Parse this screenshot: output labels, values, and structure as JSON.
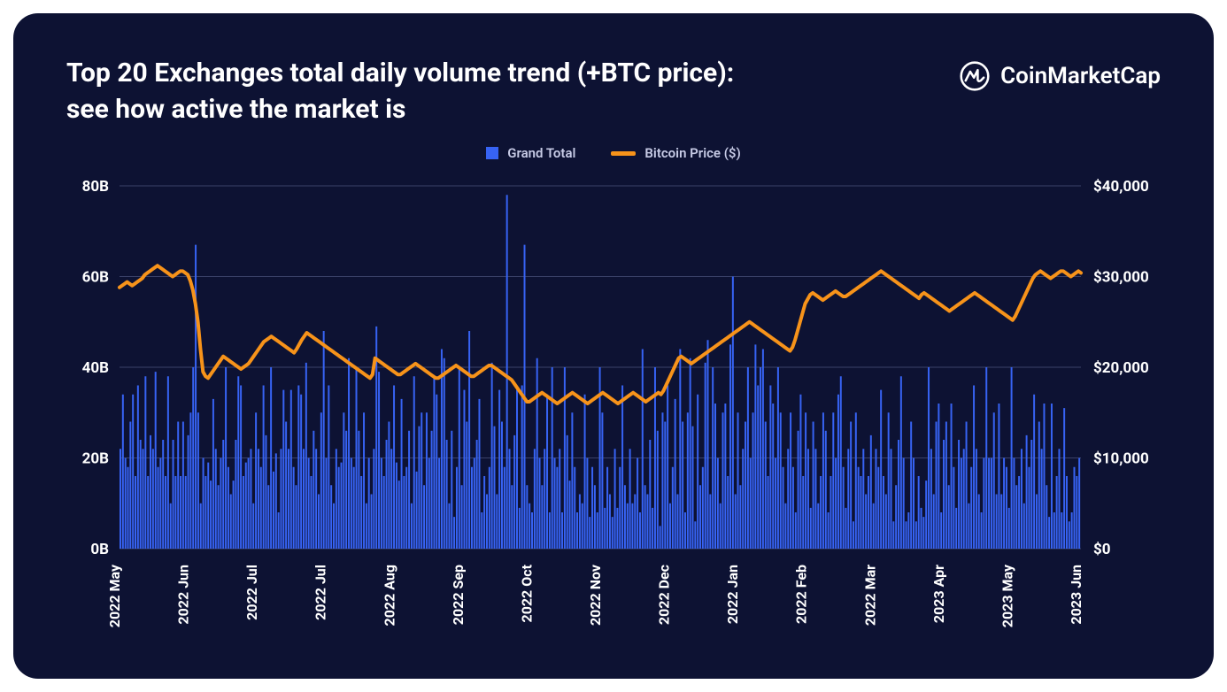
{
  "title": "Top 20 Exchanges total daily volume trend (+BTC price): see how active the market is",
  "brand": "CoinMarketCap",
  "legend": {
    "bar_label": "Grand Total",
    "line_label": "Bitcoin Price ($)"
  },
  "colors": {
    "background": "#0d1233",
    "bar": "#3763f4",
    "line": "#f7931a",
    "grid": "#3a4168",
    "text": "#ffffff"
  },
  "chart": {
    "type": "bar+line",
    "left_axis": {
      "min": 0,
      "max": 80,
      "ticks": [
        0,
        20,
        40,
        60,
        80
      ],
      "tick_labels": [
        "0B",
        "20B",
        "40B",
        "60B",
        "80B"
      ]
    },
    "right_axis": {
      "min": 0,
      "max": 40000,
      "ticks": [
        0,
        10000,
        20000,
        30000,
        40000
      ],
      "tick_labels": [
        "$0",
        "$10,000",
        "$20,000",
        "$30,000",
        "$40,000"
      ]
    },
    "x_labels": [
      "2022 May",
      "2022 Jun",
      "2022 Jul",
      "2022 Jul",
      "2022 Aug",
      "2022 Sep",
      "2022 Oct",
      "2022 Nov",
      "2022 Dec",
      "2022 Jan",
      "2022 Feb",
      "2022 Mar",
      "2023 Apr",
      "2023 May",
      "2023 Jun"
    ],
    "bars": [
      22,
      34,
      20,
      18,
      28,
      34,
      16,
      36,
      24,
      22,
      38,
      16,
      25,
      22,
      39,
      18,
      20,
      24,
      16,
      38,
      10,
      24,
      16,
      28,
      16,
      28,
      16,
      25,
      30,
      40,
      67,
      30,
      10,
      20,
      16,
      19,
      15,
      33,
      22,
      14,
      20,
      24,
      40,
      18,
      12,
      15,
      24,
      38,
      36,
      16,
      19,
      20,
      22,
      10,
      30,
      22,
      18,
      36,
      25,
      14,
      40,
      17,
      21,
      8,
      22,
      35,
      28,
      22,
      35,
      18,
      14,
      36,
      34,
      22,
      41,
      20,
      16,
      26,
      22,
      12,
      30,
      48,
      20,
      36,
      14,
      10,
      22,
      18,
      19,
      30,
      26,
      42,
      20,
      18,
      40,
      26,
      16,
      30,
      10,
      20,
      12,
      22,
      49,
      39,
      20,
      16,
      24,
      28,
      22,
      36,
      19,
      15,
      33,
      16,
      18,
      26,
      10,
      38,
      17,
      27,
      30,
      14,
      30,
      20,
      26,
      38,
      34,
      20,
      44,
      42,
      24,
      10,
      26,
      7,
      18,
      40,
      14,
      35,
      28,
      48,
      18,
      20,
      24,
      33,
      8,
      16,
      12,
      18,
      41,
      27,
      12,
      35,
      28,
      18,
      78,
      22,
      14,
      25,
      35,
      9,
      36,
      67,
      14,
      10,
      8,
      22,
      42,
      20,
      14,
      22,
      34,
      8,
      40,
      20,
      18,
      22,
      8,
      40,
      25,
      15,
      30,
      18,
      8,
      12,
      10,
      34,
      20,
      7,
      18,
      14,
      8,
      40,
      30,
      9,
      18,
      12,
      7,
      22,
      9,
      18,
      36,
      14,
      10,
      22,
      10,
      12,
      20,
      8,
      44,
      14,
      12,
      24,
      9,
      40,
      26,
      5,
      30,
      28,
      36,
      10,
      18,
      33,
      12,
      44,
      28,
      8,
      30,
      42,
      27,
      6,
      34,
      14,
      18,
      41,
      46,
      12,
      40,
      32,
      20,
      10,
      30,
      32,
      16,
      45,
      60,
      12,
      30,
      14,
      22,
      28,
      40,
      20,
      30,
      45,
      36,
      40,
      44,
      28,
      16,
      36,
      32,
      20,
      40,
      30,
      18,
      10,
      22,
      30,
      18,
      8,
      26,
      34,
      16,
      30,
      22,
      9,
      28,
      22,
      10,
      16,
      30,
      26,
      8,
      16,
      30,
      20,
      34,
      38,
      18,
      9,
      22,
      28,
      6,
      30,
      18,
      16,
      22,
      12,
      16,
      25,
      10,
      22,
      18,
      35,
      16,
      12,
      30,
      22,
      6,
      14,
      24,
      38,
      20,
      6,
      8,
      28,
      20,
      6,
      16,
      9,
      7,
      15,
      40,
      22,
      12,
      28,
      32,
      8,
      24,
      28,
      14,
      32,
      18,
      9,
      24,
      20,
      22,
      28,
      10,
      18,
      36,
      22,
      12,
      8,
      20,
      40,
      20,
      20,
      30,
      12,
      32,
      12,
      20,
      18,
      9,
      40,
      20,
      14,
      16,
      22,
      10,
      25,
      18,
      24,
      34,
      12,
      28,
      22,
      32,
      14,
      7,
      32,
      8,
      16,
      22,
      8,
      31,
      16,
      6,
      8,
      18,
      16,
      20
    ],
    "line": [
      28800,
      29000,
      29200,
      29400,
      29200,
      29000,
      29200,
      29400,
      29600,
      29800,
      30200,
      30400,
      30600,
      30800,
      31000,
      31200,
      31000,
      30800,
      30600,
      30400,
      30200,
      30000,
      30200,
      30400,
      30600,
      30600,
      30400,
      30200,
      29500,
      28500,
      27000,
      25000,
      22000,
      19500,
      19000,
      18800,
      19200,
      19600,
      20000,
      20400,
      20800,
      21200,
      21000,
      20800,
      20600,
      20400,
      20200,
      20000,
      19800,
      20000,
      20200,
      20400,
      20800,
      21200,
      21600,
      22000,
      22400,
      22800,
      23000,
      23200,
      23400,
      23200,
      23000,
      22800,
      22600,
      22400,
      22200,
      22000,
      21800,
      21600,
      22000,
      22500,
      23000,
      23400,
      23800,
      23600,
      23400,
      23200,
      23000,
      22800,
      22600,
      22400,
      22200,
      22000,
      21800,
      21600,
      21400,
      21200,
      21000,
      20800,
      20600,
      20400,
      20200,
      20000,
      19800,
      19600,
      19400,
      19200,
      19000,
      18800,
      19200,
      21000,
      20800,
      20600,
      20400,
      20200,
      20000,
      19800,
      19600,
      19400,
      19200,
      19200,
      19400,
      19600,
      19800,
      20000,
      20200,
      20400,
      20200,
      20000,
      19800,
      19600,
      19400,
      19200,
      19000,
      18800,
      18800,
      19000,
      19200,
      19400,
      19600,
      19800,
      20000,
      20200,
      20000,
      19800,
      19600,
      19400,
      19200,
      19000,
      19000,
      19200,
      19400,
      19600,
      19800,
      20000,
      20200,
      20200,
      20000,
      19800,
      19600,
      19400,
      19200,
      19000,
      18800,
      18600,
      18200,
      17800,
      17400,
      17000,
      16600,
      16200,
      16200,
      16400,
      16600,
      16800,
      17000,
      17200,
      17000,
      16800,
      16600,
      16400,
      16200,
      16000,
      16200,
      16400,
      16600,
      16800,
      17000,
      17200,
      17000,
      16800,
      16600,
      16400,
      16200,
      16000,
      16200,
      16400,
      16600,
      16800,
      17000,
      17200,
      17000,
      16800,
      16600,
      16400,
      16200,
      16000,
      16200,
      16400,
      16600,
      16800,
      17000,
      17200,
      17000,
      16800,
      16600,
      16400,
      16200,
      16400,
      16600,
      16800,
      17000,
      17200,
      17000,
      17400,
      18000,
      18600,
      19200,
      19800,
      20400,
      21000,
      21200,
      21000,
      20800,
      20600,
      20400,
      20600,
      20800,
      21000,
      21200,
      21400,
      21600,
      21800,
      22000,
      22200,
      22400,
      22600,
      22800,
      23000,
      23200,
      23400,
      23600,
      23800,
      24000,
      24200,
      24400,
      24600,
      24800,
      25000,
      24800,
      24600,
      24400,
      24200,
      24000,
      23800,
      23600,
      23400,
      23200,
      23000,
      22800,
      22600,
      22400,
      22200,
      22000,
      21800,
      22200,
      23000,
      24000,
      25000,
      26000,
      27000,
      27500,
      28000,
      28200,
      28000,
      27800,
      27600,
      27400,
      27600,
      27800,
      28000,
      28200,
      28400,
      28200,
      28000,
      27800,
      27800,
      28000,
      28200,
      28400,
      28600,
      28800,
      29000,
      29200,
      29400,
      29600,
      29800,
      30000,
      30200,
      30400,
      30600,
      30400,
      30200,
      30000,
      29800,
      29600,
      29400,
      29200,
      29000,
      28800,
      28600,
      28400,
      28200,
      28000,
      27800,
      27600,
      28000,
      28200,
      28000,
      27800,
      27600,
      27400,
      27200,
      27000,
      26800,
      26600,
      26400,
      26200,
      26400,
      26600,
      26800,
      27000,
      27200,
      27400,
      27600,
      27800,
      28000,
      28200,
      28000,
      27800,
      27600,
      27400,
      27200,
      27000,
      26800,
      26600,
      26400,
      26200,
      26000,
      25800,
      25600,
      25400,
      25200,
      25600,
      26200,
      26800,
      27400,
      28000,
      28600,
      29200,
      29800,
      30200,
      30400,
      30600,
      30400,
      30200,
      30000,
      29800,
      30000,
      30200,
      30400,
      30600,
      30600,
      30400,
      30200,
      30000,
      30200,
      30400,
      30600,
      30400
    ]
  }
}
